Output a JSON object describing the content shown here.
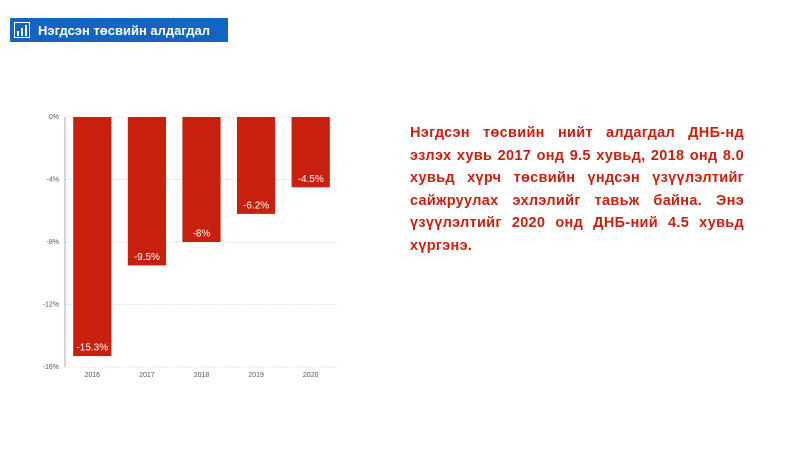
{
  "header": {
    "title": "Нэгдсэн төсвийн алдагдал"
  },
  "text": "Нэгдсэн төсвийн нийт алдагдал ДНБ-нд эзлэх хувь 2017 онд 9.5 хувьд, 2018 онд 8.0 хувьд хүрч төсвийн үндсэн үзүүлэлтийг сайжруулах эхлэлийг тавьж байна. Энэ үзүүлэлтийг 2020 онд ДНБ-ний 4.5 хувьд хүргэнэ.",
  "chart_data": {
    "type": "bar",
    "categories": [
      "2016",
      "2017",
      "2018",
      "2019",
      "2020"
    ],
    "values": [
      -15.3,
      -9.5,
      -8,
      -6.2,
      -4.5
    ],
    "value_labels": [
      "-15.3%",
      "-9.5%",
      "-8%",
      "-6.2%",
      "-4.5%"
    ],
    "color": "#c8200e",
    "ylim": [
      -16,
      0
    ],
    "yticks": [
      {
        "value": 0,
        "label": "0%"
      },
      {
        "value": -4,
        "label": "-4%"
      },
      {
        "value": -8,
        "label": "-8%"
      },
      {
        "value": -12,
        "label": "-12%"
      },
      {
        "value": -16,
        "label": "-16%"
      }
    ],
    "grid": true
  }
}
